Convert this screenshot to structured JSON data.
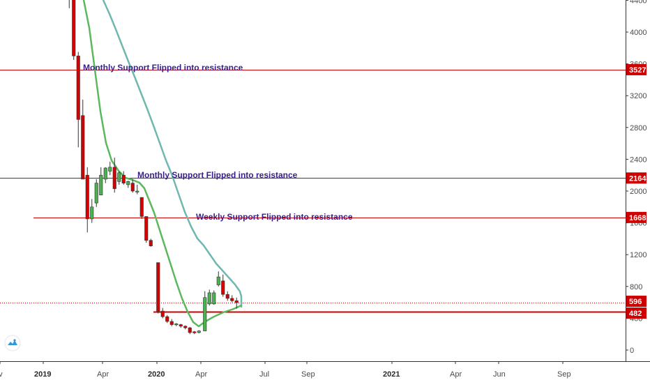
{
  "chart_data": {
    "type": "candlestick",
    "title": "",
    "xlabel": "",
    "ylabel": "",
    "ylim": [
      -80,
      4480
    ],
    "x_axis_labels": [
      "ov",
      "2019",
      "Apr",
      "2020",
      "Apr",
      "Jul",
      "Sep",
      "2021",
      "Apr",
      "Jun",
      "Sep"
    ],
    "y_ticks": [
      0,
      400,
      800,
      1200,
      1600,
      2000,
      2400,
      2800,
      3200,
      3600,
      4000,
      4400
    ],
    "y_tick_labels": [
      "0",
      "400",
      "800",
      "1200",
      "1600",
      "2000",
      "2400",
      "2800",
      "3200",
      "3600",
      "4000",
      "4400"
    ],
    "candles": [
      {
        "o": 4480,
        "h": 4550,
        "l": 4300,
        "c": 4480
      },
      {
        "o": 4480,
        "h": 4500,
        "l": 3650,
        "c": 3700
      },
      {
        "o": 3700,
        "h": 3750,
        "l": 2550,
        "c": 2900
      },
      {
        "o": 2950,
        "h": 3150,
        "l": 2150,
        "c": 2150
      },
      {
        "o": 2200,
        "h": 2300,
        "l": 1480,
        "c": 1650
      },
      {
        "o": 1650,
        "h": 1900,
        "l": 1600,
        "c": 1800
      },
      {
        "o": 1850,
        "h": 2150,
        "l": 1800,
        "c": 2100
      },
      {
        "o": 1950,
        "h": 2300,
        "l": 1950,
        "c": 2200
      },
      {
        "o": 2150,
        "h": 2300,
        "l": 2100,
        "c": 2290
      },
      {
        "o": 2250,
        "h": 2370,
        "l": 2200,
        "c": 2300
      },
      {
        "o": 2300,
        "h": 2420,
        "l": 1980,
        "c": 2030
      },
      {
        "o": 2120,
        "h": 2250,
        "l": 2080,
        "c": 2230
      },
      {
        "o": 2200,
        "h": 2250,
        "l": 2080,
        "c": 2100
      },
      {
        "o": 2080,
        "h": 2130,
        "l": 2040,
        "c": 2120
      },
      {
        "o": 2100,
        "h": 2150,
        "l": 1980,
        "c": 2000
      },
      {
        "o": 2000,
        "h": 2080,
        "l": 1960,
        "c": 2000
      },
      {
        "o": 1920,
        "h": 1920,
        "l": 1650,
        "c": 1680
      },
      {
        "o": 1680,
        "h": 1680,
        "l": 1350,
        "c": 1380
      },
      {
        "o": 1380,
        "h": 1400,
        "l": 1300,
        "c": 1310
      },
      {
        "o": 1100,
        "h": 1100,
        "l": 460,
        "c": 490
      },
      {
        "o": 490,
        "h": 530,
        "l": 400,
        "c": 420
      },
      {
        "o": 420,
        "h": 440,
        "l": 340,
        "c": 360
      },
      {
        "o": 360,
        "h": 390,
        "l": 300,
        "c": 320
      },
      {
        "o": 320,
        "h": 340,
        "l": 300,
        "c": 330
      },
      {
        "o": 320,
        "h": 330,
        "l": 280,
        "c": 300
      },
      {
        "o": 300,
        "h": 310,
        "l": 260,
        "c": 280
      },
      {
        "o": 280,
        "h": 290,
        "l": 200,
        "c": 220
      },
      {
        "o": 230,
        "h": 240,
        "l": 200,
        "c": 220
      },
      {
        "o": 220,
        "h": 250,
        "l": 210,
        "c": 240
      },
      {
        "o": 240,
        "h": 740,
        "l": 240,
        "c": 660
      },
      {
        "o": 580,
        "h": 760,
        "l": 560,
        "c": 720
      },
      {
        "o": 580,
        "h": 750,
        "l": 570,
        "c": 720
      },
      {
        "o": 820,
        "h": 990,
        "l": 800,
        "c": 920
      },
      {
        "o": 870,
        "h": 950,
        "l": 670,
        "c": 700
      },
      {
        "o": 700,
        "h": 740,
        "l": 620,
        "c": 650
      },
      {
        "o": 650,
        "h": 690,
        "l": 600,
        "c": 620
      },
      {
        "o": 620,
        "h": 660,
        "l": 520,
        "c": 596
      }
    ],
    "series": [
      {
        "type": "line",
        "color": "#6fb8b0",
        "values": [
          4700,
          4500,
          4300,
          4100,
          3900,
          3700,
          3500,
          3300,
          3100,
          2900,
          2700,
          2500,
          2300,
          2050,
          1850,
          1680,
          1570,
          1480,
          1400,
          1300,
          1180,
          1050,
          920,
          840,
          800,
          700,
          650
        ]
      },
      {
        "type": "line",
        "color": "#5cb85c",
        "values": [
          4300,
          3700,
          3200,
          2800,
          2500,
          2350,
          2270,
          2200,
          2180,
          2170,
          2140,
          2100,
          2010,
          1820,
          1600,
          1380,
          1180,
          980,
          780,
          560,
          340,
          340,
          400,
          480,
          530,
          580
        ]
      }
    ],
    "horizontal_levels": [
      {
        "value": 3527,
        "badge": "3527",
        "label": "Monthly Support Flipped into resistance"
      },
      {
        "value": 2164,
        "badge": "2164",
        "label": "Monthly Support Flipped into resistance"
      },
      {
        "value": 1668,
        "badge": "1668",
        "label": "Weekly Support Flipped into resistance"
      },
      {
        "value": 482,
        "badge": "482",
        "label": ""
      }
    ],
    "last_price": {
      "value": 596,
      "badge": "596"
    },
    "colors": {
      "up": "#4caf50",
      "down": "#d50000",
      "level": "#cc0000",
      "text": "#3a1f8c"
    },
    "grid": false
  },
  "watermark": {
    "icon": "tradingview-logo-icon"
  }
}
